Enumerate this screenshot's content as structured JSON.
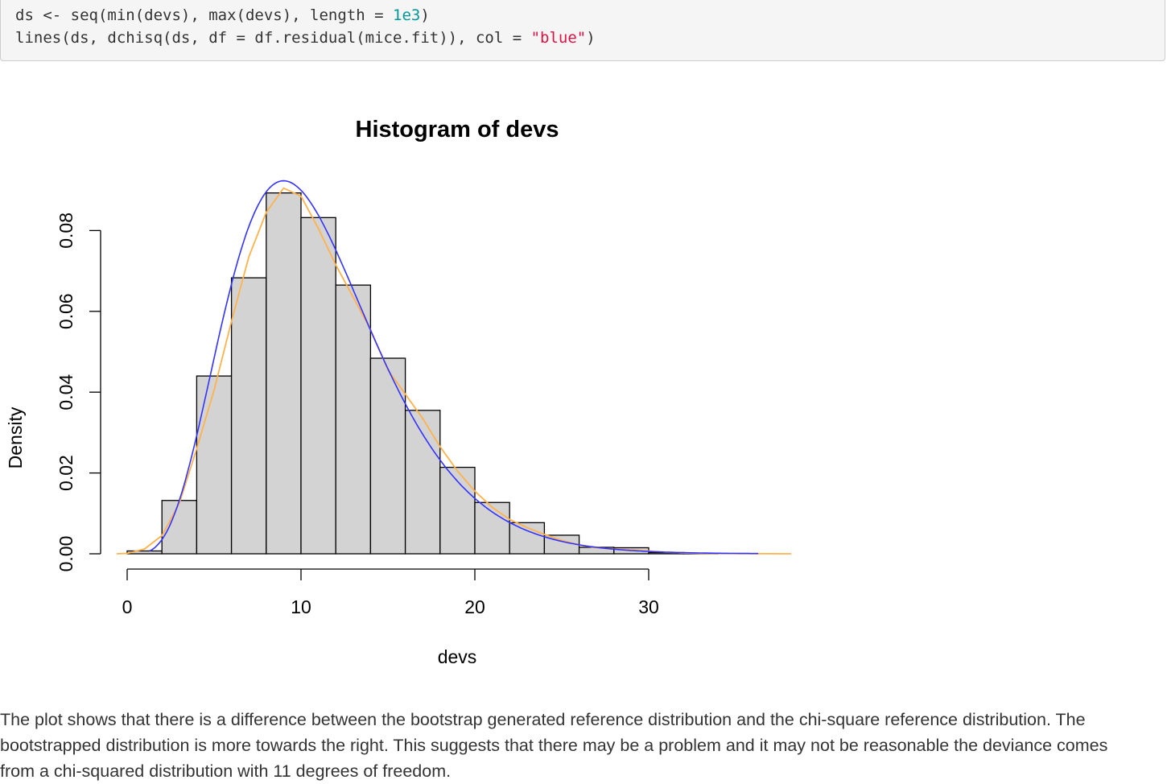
{
  "code": {
    "line1": {
      "a": "ds <- seq(min(devs), max(devs), length = ",
      "num": "1e3",
      "b": ")"
    },
    "line2": {
      "a": "lines(ds, dchisq(ds, df = df.residual(mice.fit)), col = ",
      "str": "\"blue\"",
      "b": ")"
    }
  },
  "chart_data": {
    "type": "bar",
    "title": "Histogram of devs",
    "xlabel": "devs",
    "ylabel": "Density",
    "xlim": [
      0,
      38
    ],
    "ylim": [
      0,
      0.09
    ],
    "x_ticks": [
      0,
      10,
      20,
      30
    ],
    "x_tick_labels": [
      "0",
      "10",
      "20",
      "30"
    ],
    "y_ticks": [
      0,
      0.02,
      0.04,
      0.06,
      0.08
    ],
    "y_tick_labels": [
      "0.00",
      "0.02",
      "0.04",
      "0.06",
      "0.08"
    ],
    "bins": [
      {
        "from": 0,
        "to": 2,
        "density": 0.0007
      },
      {
        "from": 2,
        "to": 4,
        "density": 0.0132
      },
      {
        "from": 4,
        "to": 6,
        "density": 0.044
      },
      {
        "from": 6,
        "to": 8,
        "density": 0.0683
      },
      {
        "from": 8,
        "to": 10,
        "density": 0.0893
      },
      {
        "from": 10,
        "to": 12,
        "density": 0.0832
      },
      {
        "from": 12,
        "to": 14,
        "density": 0.0665
      },
      {
        "from": 14,
        "to": 16,
        "density": 0.0484
      },
      {
        "from": 16,
        "to": 18,
        "density": 0.0355
      },
      {
        "from": 18,
        "to": 20,
        "density": 0.0214
      },
      {
        "from": 20,
        "to": 22,
        "density": 0.0127
      },
      {
        "from": 22,
        "to": 24,
        "density": 0.0077
      },
      {
        "from": 24,
        "to": 26,
        "density": 0.0046
      },
      {
        "from": 26,
        "to": 28,
        "density": 0.0016
      },
      {
        "from": 28,
        "to": 30,
        "density": 0.0015
      },
      {
        "from": 30,
        "to": 32,
        "density": 0.0003
      },
      {
        "from": 32,
        "to": 34,
        "density": 0.0001
      }
    ],
    "bar_color": "#d3d3d3",
    "curves": [
      {
        "color": "#ffb24c",
        "points": [
          [
            -0.6,
            0
          ],
          [
            0,
            0.0001
          ],
          [
            1,
            0.0012
          ],
          [
            2,
            0.0045
          ],
          [
            3,
            0.0125
          ],
          [
            4,
            0.026
          ],
          [
            5,
            0.0405
          ],
          [
            6,
            0.0575
          ],
          [
            7,
            0.0735
          ],
          [
            8,
            0.0845
          ],
          [
            9,
            0.0905
          ],
          [
            10,
            0.0885
          ],
          [
            11,
            0.0805
          ],
          [
            12,
            0.0715
          ],
          [
            13,
            0.0635
          ],
          [
            14,
            0.0555
          ],
          [
            15,
            0.0455
          ],
          [
            16,
            0.0395
          ],
          [
            17,
            0.0335
          ],
          [
            18,
            0.0265
          ],
          [
            19,
            0.0205
          ],
          [
            20,
            0.0155
          ],
          [
            21,
            0.0115
          ],
          [
            22,
            0.0085
          ],
          [
            23,
            0.0065
          ],
          [
            24,
            0.0048
          ],
          [
            25,
            0.0033
          ],
          [
            26,
            0.0022
          ],
          [
            27,
            0.0015
          ],
          [
            28,
            0.0012
          ],
          [
            29,
            0.001
          ],
          [
            30,
            0.0007
          ],
          [
            31,
            0.0004
          ],
          [
            32,
            0.0002
          ],
          [
            33,
            0.0001
          ],
          [
            35,
            5e-05
          ],
          [
            37,
            2e-05
          ],
          [
            38.2,
            0
          ]
        ]
      },
      {
        "color": "#3333ff",
        "df": 11,
        "x_range": [
          1.3,
          36.3
        ]
      }
    ]
  },
  "paragraph": {
    "line1": "The plot shows that there is a difference between the bootstrap generated reference distribution and the chi-square reference distribution. The",
    "line2": "bootstrapped distribution is more towards the right. This suggests that there may be a problem and it may not be reasonable the deviance comes",
    "line3": "from a chi-squared distribution with 11 degrees of freedom."
  }
}
